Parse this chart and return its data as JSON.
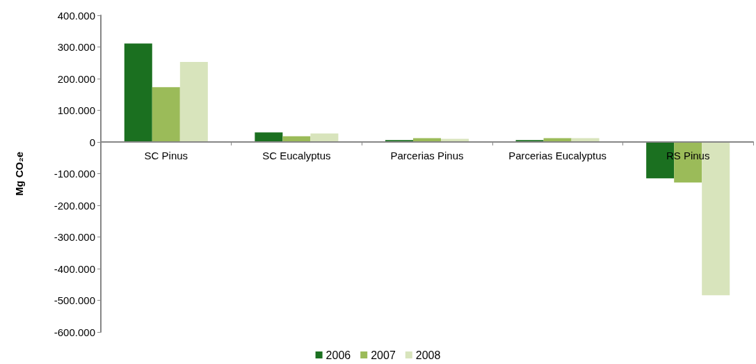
{
  "chart_data": {
    "type": "bar",
    "ylabel": "Mg CO₂e",
    "categories": [
      "SC Pinus",
      "SC Eucalyptus",
      "Parcerias Pinus",
      "Parcerias Eucalyptus",
      "RS Pinus"
    ],
    "series": [
      {
        "name": "2006",
        "color": "#1b7020",
        "values": [
          311000,
          30000,
          6000,
          6000,
          -115000
        ]
      },
      {
        "name": "2007",
        "color": "#9bbb59",
        "values": [
          173000,
          18000,
          12000,
          12000,
          -128000
        ]
      },
      {
        "name": "2008",
        "color": "#d8e4bc",
        "values": [
          253000,
          27000,
          10000,
          12000,
          -484000
        ]
      }
    ],
    "ylim": [
      -600000,
      400000
    ],
    "yticks": [
      {
        "value": -600000,
        "label": "-600.000"
      },
      {
        "value": -500000,
        "label": "-500.000"
      },
      {
        "value": -400000,
        "label": "-400.000"
      },
      {
        "value": -300000,
        "label": "-300.000"
      },
      {
        "value": -200000,
        "label": "-200.000"
      },
      {
        "value": -100000,
        "label": "-100.000"
      },
      {
        "value": 0,
        "label": "0"
      },
      {
        "value": 100000,
        "label": "100.000"
      },
      {
        "value": 200000,
        "label": "200.000"
      },
      {
        "value": 300000,
        "label": "300.000"
      },
      {
        "value": 400000,
        "label": "400.000"
      }
    ],
    "grid": false,
    "legend": "bottom"
  }
}
